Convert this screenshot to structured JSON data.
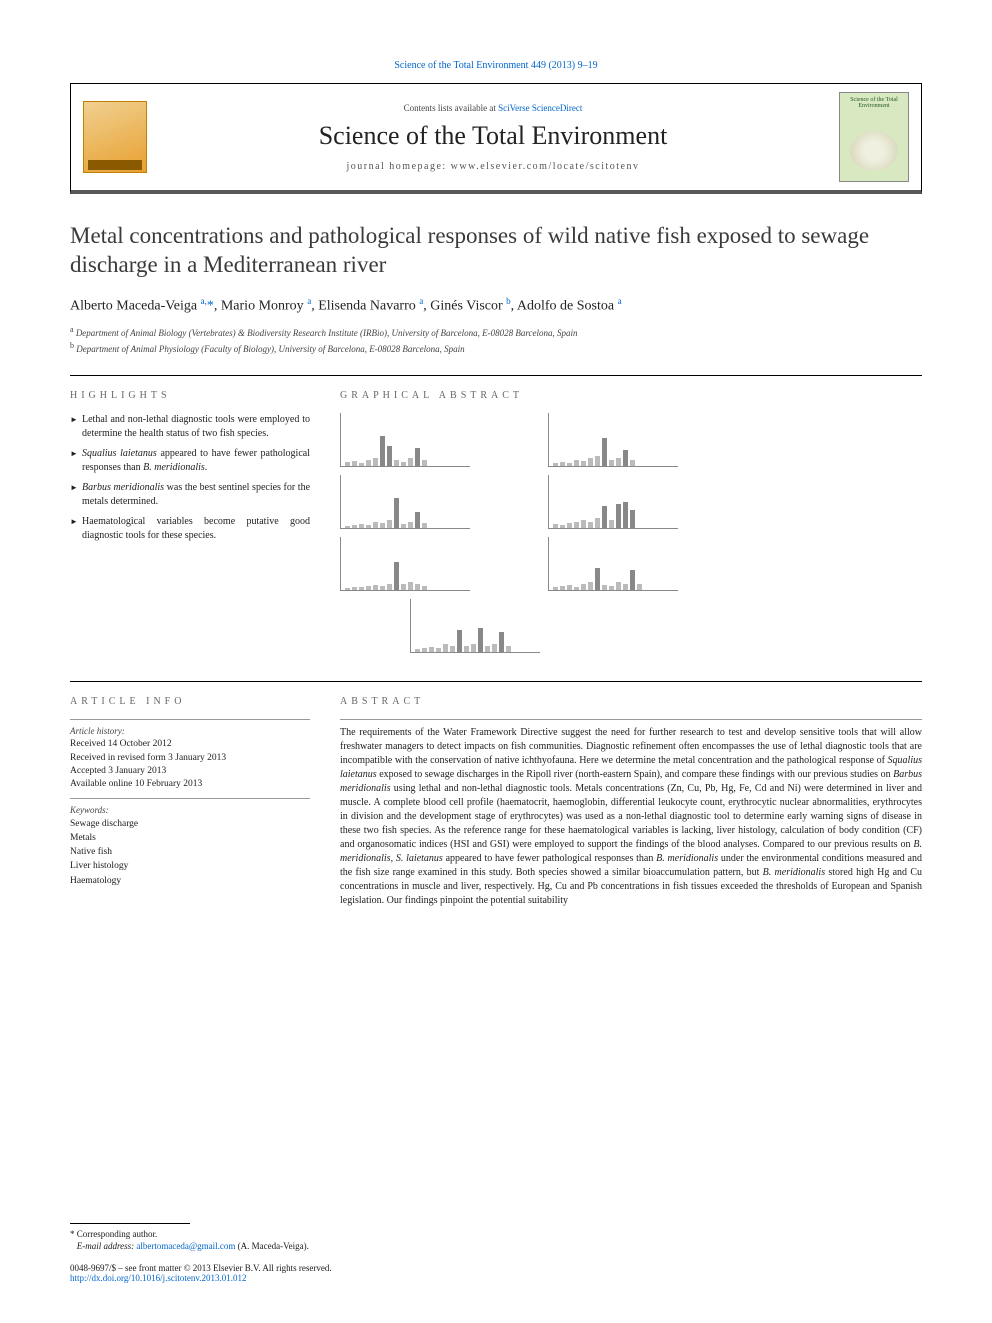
{
  "header": {
    "citation_link": "Science of the Total Environment 449 (2013) 9–19",
    "contents_prefix": "Contents lists available at ",
    "contents_link": "SciVerse ScienceDirect",
    "journal_name": "Science of the Total Environment",
    "homepage_label": "journal homepage: www.elsevier.com/locate/scitotenv",
    "cover_text": "Science of the\nTotal Environment"
  },
  "article": {
    "title": "Metal concentrations and pathological responses of wild native fish exposed to sewage discharge in a Mediterranean river",
    "authors_html": "Alberto Maceda-Veiga <sup>a,</sup><span class='star'>*</span>, Mario Monroy <sup>a</sup>, Elisenda Navarro <sup>a</sup>, Ginés Viscor <sup>b</sup>, Adolfo de Sostoa <sup>a</sup>",
    "affiliations": [
      "Department of Animal Biology (Vertebrates) & Biodiversity Research Institute (IRBio), University of Barcelona, E-08028 Barcelona, Spain",
      "Department of Animal Physiology (Faculty of Biology), University of Barcelona, E-08028 Barcelona, Spain"
    ],
    "aff_sup": [
      "a",
      "b"
    ]
  },
  "highlights": {
    "label": "HIGHLIGHTS",
    "items": [
      "Lethal and non-lethal diagnostic tools were employed to determine the health status of two fish species.",
      "Squalius laietanus appeared to have fewer pathological responses than B. meridionalis.",
      "Barbus meridionalis was the best sentinel species for the metals determined.",
      "Haematological variables become putative good diagnostic tools for these species."
    ]
  },
  "graphical": {
    "label": "GRAPHICAL ABSTRACT",
    "charts": [
      {
        "bars": [
          4,
          5,
          3,
          6,
          8,
          30,
          20,
          6,
          4,
          8,
          18,
          6
        ]
      },
      {
        "bars": [
          3,
          4,
          3,
          6,
          5,
          8,
          10,
          28,
          6,
          8,
          16,
          6
        ]
      },
      {
        "bars": [
          2,
          3,
          4,
          3,
          6,
          5,
          8,
          30,
          4,
          6,
          16,
          5
        ]
      },
      {
        "bars": [
          4,
          3,
          5,
          6,
          8,
          6,
          10,
          22,
          8,
          24,
          26,
          18
        ]
      },
      {
        "bars": [
          2,
          3,
          3,
          4,
          5,
          4,
          6,
          28,
          6,
          8,
          6,
          4
        ]
      },
      {
        "bars": [
          3,
          4,
          5,
          3,
          6,
          8,
          22,
          5,
          4,
          8,
          6,
          20,
          6
        ]
      },
      {
        "bars": [
          3,
          4,
          5,
          4,
          8,
          6,
          22,
          6,
          8,
          24,
          6,
          8,
          20,
          6
        ]
      }
    ]
  },
  "article_info": {
    "label": "ARTICLE INFO",
    "history_label": "Article history:",
    "history": [
      "Received 14 October 2012",
      "Received in revised form 3 January 2013",
      "Accepted 3 January 2013",
      "Available online 10 February 2013"
    ],
    "keywords_label": "Keywords:",
    "keywords": [
      "Sewage discharge",
      "Metals",
      "Native fish",
      "Liver histology",
      "Haematology"
    ]
  },
  "abstract": {
    "label": "ABSTRACT",
    "text": "The requirements of the Water Framework Directive suggest the need for further research to test and develop sensitive tools that will allow freshwater managers to detect impacts on fish communities. Diagnostic refinement often encompasses the use of lethal diagnostic tools that are incompatible with the conservation of native ichthyofauna. Here we determine the metal concentration and the pathological response of Squalius laietanus exposed to sewage discharges in the Ripoll river (north-eastern Spain), and compare these findings with our previous studies on Barbus meridionalis using lethal and non-lethal diagnostic tools. Metals concentrations (Zn, Cu, Pb, Hg, Fe, Cd and Ni) were determined in liver and muscle. A complete blood cell profile (haematocrit, haemoglobin, differential leukocyte count, erythrocytic nuclear abnormalities, erythrocytes in division and the development stage of erythrocytes) was used as a non-lethal diagnostic tool to determine early warning signs of disease in these two fish species. As the reference range for these haematological variables is lacking, liver histology, calculation of body condition (CF) and organosomatic indices (HSI and GSI) were employed to support the findings of the blood analyses. Compared to our previous results on B. meridionalis, S. laietanus appeared to have fewer pathological responses than B. meridionalis under the environmental conditions measured and the fish size range examined in this study. Both species showed a similar bioaccumulation pattern, but B. meridionalis stored high Hg and Cu concentrations in muscle and liver, respectively. Hg, Cu and Pb concentrations in fish tissues exceeded the thresholds of European and Spanish legislation. Our findings pinpoint the potential suitability"
  },
  "footer": {
    "corr_label": "Corresponding author.",
    "email_label": "E-mail address:",
    "email": "albertomaceda@gmail.com",
    "email_paren": "(A. Maceda-Veiga).",
    "issn": "0048-9697/$ – see front matter © 2013 Elsevier B.V. All rights reserved.",
    "doi": "http://dx.doi.org/10.1016/j.scitotenv.2013.01.012"
  },
  "colors": {
    "link": "#0066cc",
    "text": "#1a1a1a",
    "muted": "#666666",
    "rule": "#000000"
  }
}
